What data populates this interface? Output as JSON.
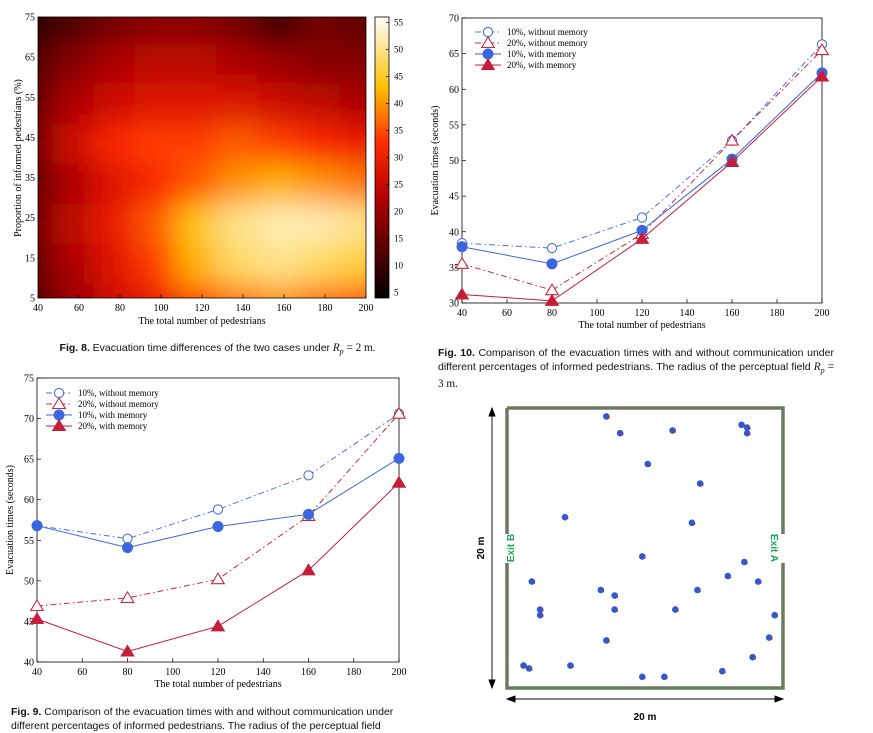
{
  "fig8": {
    "caption_label": "Fig. 8.",
    "caption_text": "Evacuation time differences of the two cases under",
    "caption_math": "R",
    "caption_sub": "p",
    "caption_tail": " = 2 m.",
    "chart_data": {
      "type": "heatmap",
      "xlabel": "The total number of pedestrians",
      "ylabel": "Proportion of informed pedestrians (%)",
      "x_ticks": [
        "40",
        "60",
        "80",
        "100",
        "120",
        "140",
        "160",
        "180",
        "200"
      ],
      "y_ticks": [
        "5",
        "15",
        "25",
        "35",
        "45",
        "55",
        "65",
        "75"
      ],
      "colorbar_ticks": [
        "5",
        "10",
        "15",
        "20",
        "25",
        "30",
        "35",
        "40",
        "45",
        "50",
        "55"
      ],
      "xlim": [
        40,
        200
      ],
      "ylim": [
        5,
        75
      ],
      "clim": [
        4,
        56
      ],
      "x": [
        40,
        60,
        80,
        100,
        120,
        140,
        160,
        180,
        200
      ],
      "y": [
        5,
        15,
        25,
        35,
        45,
        55,
        65,
        75
      ],
      "values": [
        [
          12,
          20,
          26,
          30,
          35,
          38,
          40,
          38,
          36
        ],
        [
          14,
          22,
          28,
          34,
          42,
          48,
          50,
          48,
          46
        ],
        [
          16,
          24,
          30,
          36,
          44,
          50,
          52,
          52,
          50
        ],
        [
          14,
          22,
          28,
          32,
          36,
          40,
          42,
          40,
          38
        ],
        [
          16,
          26,
          32,
          34,
          34,
          36,
          34,
          32,
          30
        ],
        [
          14,
          22,
          26,
          28,
          28,
          28,
          26,
          24,
          22
        ],
        [
          12,
          18,
          22,
          24,
          24,
          22,
          20,
          18,
          18
        ],
        [
          8,
          12,
          16,
          18,
          18,
          16,
          10,
          16,
          14
        ]
      ]
    }
  },
  "fig10": {
    "caption_label": "Fig. 10.",
    "caption_text": "Comparison of the evacuation times with and without communication under different percentages of informed pedestrians. The radius of the perceptual field",
    "caption_math": "R",
    "caption_sub": "p",
    "caption_tail": " = 3 m.",
    "chart_data": {
      "type": "line",
      "xlabel": "The total number of pedestrians",
      "ylabel": "Evacuation times (seconds)",
      "x": [
        40,
        80,
        120,
        160,
        200
      ],
      "x_ticks": [
        "40",
        "60",
        "80",
        "100",
        "120",
        "140",
        "160",
        "180",
        "200"
      ],
      "y_ticks": [
        "30",
        "35",
        "40",
        "45",
        "50",
        "55",
        "60",
        "65",
        "70"
      ],
      "xlim": [
        40,
        200
      ],
      "ylim": [
        30,
        70
      ],
      "legend": "top-left",
      "series": [
        {
          "name": "10%, without memory",
          "values": [
            38.4,
            37.7,
            42.0,
            52.8,
            66.3
          ],
          "color": "#4a72d8",
          "marker": "circle-open",
          "dash": "6,3,1.5,3"
        },
        {
          "name": "20%, without memory",
          "values": [
            35.5,
            31.8,
            39.7,
            52.8,
            65.5
          ],
          "color": "#c8283c",
          "marker": "triangle-open",
          "dash": "6,3,1.5,3"
        },
        {
          "name": "10%, with memory",
          "values": [
            37.9,
            35.5,
            40.2,
            50.2,
            62.3
          ],
          "color": "#3a66e0",
          "marker": "circle",
          "dash": ""
        },
        {
          "name": "20%, with memory",
          "values": [
            31.2,
            30.3,
            39.0,
            49.8,
            61.8
          ],
          "color": "#c41e3a",
          "marker": "triangle",
          "dash": ""
        }
      ]
    }
  },
  "fig9": {
    "caption_label": "Fig. 9.",
    "caption_line1": "Comparison of the evacuation times with and without communication under",
    "caption_line2": "different percentages of informed pedestrians. The radius of the perceptual field",
    "chart_data": {
      "type": "line",
      "xlabel": "The total number of pedestrians",
      "ylabel": "Evacuation times (seconds)",
      "x": [
        40,
        80,
        120,
        160,
        200
      ],
      "x_ticks": [
        "40",
        "60",
        "80",
        "100",
        "120",
        "140",
        "160",
        "180",
        "200"
      ],
      "y_ticks": [
        "40",
        "45",
        "50",
        "55",
        "60",
        "65",
        "70",
        "75"
      ],
      "xlim": [
        40,
        200
      ],
      "ylim": [
        40,
        75
      ],
      "legend": "top-left",
      "series": [
        {
          "name": "10%, without memory",
          "values": [
            56.8,
            55.2,
            58.8,
            63.0,
            70.6
          ],
          "color": "#4a72d8",
          "marker": "circle-open",
          "dash": "6,3,1.5,3"
        },
        {
          "name": "20%, without memory",
          "values": [
            46.9,
            47.9,
            50.2,
            58.0,
            70.6
          ],
          "color": "#c8283c",
          "marker": "triangle-open",
          "dash": "6,3,1.5,3"
        },
        {
          "name": "10%, with memory",
          "values": [
            56.8,
            54.1,
            56.7,
            58.2,
            65.1
          ],
          "color": "#3a66e0",
          "marker": "circle",
          "dash": ""
        },
        {
          "name": "20%, with memory",
          "values": [
            45.3,
            41.3,
            44.4,
            51.3,
            62.1
          ],
          "color": "#c41e3a",
          "marker": "triangle",
          "dash": ""
        }
      ]
    }
  },
  "room": {
    "height_label": "20 m",
    "width_label": "20 m",
    "exit_a": "Exit A",
    "exit_b": "Exit B",
    "pedestrians": [
      [
        0.36,
        0.97
      ],
      [
        0.41,
        0.91
      ],
      [
        0.6,
        0.92
      ],
      [
        0.85,
        0.94
      ],
      [
        0.87,
        0.93
      ],
      [
        0.87,
        0.91
      ],
      [
        0.51,
        0.8
      ],
      [
        0.67,
        0.59
      ],
      [
        0.7,
        0.73
      ],
      [
        0.21,
        0.61
      ],
      [
        0.8,
        0.4
      ],
      [
        0.09,
        0.38
      ],
      [
        0.49,
        0.47
      ],
      [
        0.34,
        0.35
      ],
      [
        0.39,
        0.33
      ],
      [
        0.69,
        0.35
      ],
      [
        0.86,
        0.45
      ],
      [
        0.91,
        0.38
      ],
      [
        0.61,
        0.28
      ],
      [
        0.12,
        0.28
      ],
      [
        0.12,
        0.26
      ],
      [
        0.39,
        0.28
      ],
      [
        0.97,
        0.26
      ],
      [
        0.95,
        0.18
      ],
      [
        0.36,
        0.17
      ],
      [
        0.89,
        0.11
      ],
      [
        0.06,
        0.08
      ],
      [
        0.08,
        0.07
      ],
      [
        0.23,
        0.08
      ],
      [
        0.49,
        0.04
      ],
      [
        0.57,
        0.04
      ],
      [
        0.78,
        0.06
      ]
    ]
  }
}
